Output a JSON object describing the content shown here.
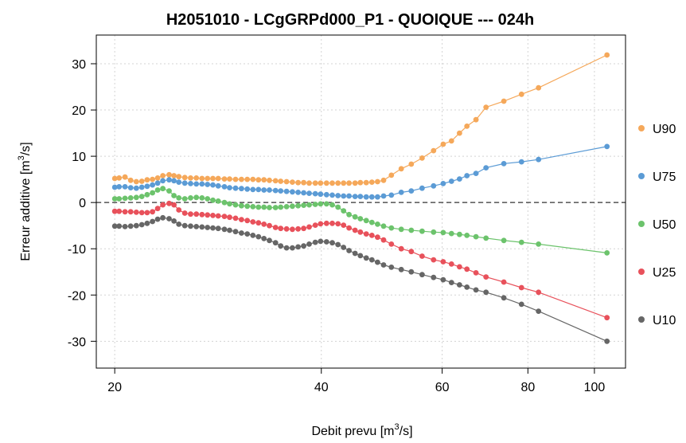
{
  "chart_data": {
    "type": "line",
    "title": "H2051010 - LCgGRPd000_P1 - QUOIQUE --- 024h",
    "xlabel": "Debit prevu [m",
    "xlabel_sup": "3",
    "xlabel_tail": "/s]",
    "ylabel": "Erreur additive [m",
    "ylabel_sup": "3",
    "ylabel_tail": "/s]",
    "x_scale": "log",
    "xlim": [
      18.8,
      111
    ],
    "ylim": [
      -35.8,
      36.2
    ],
    "x_ticks": [
      20,
      40,
      60,
      80,
      100
    ],
    "x_tick_labels": [
      "20",
      "40",
      "60",
      "80",
      "100"
    ],
    "y_ticks": [
      -30,
      -20,
      -10,
      0,
      10,
      20,
      30
    ],
    "y_tick_labels": [
      "-30",
      "-20",
      "-10",
      "0",
      "10",
      "20",
      "30"
    ],
    "grid": true,
    "reference_line": 0,
    "legend_position": "right",
    "series": [
      {
        "name": "U90",
        "color": "#F5A85A",
        "x": [
          20.0,
          20.3,
          20.7,
          21.1,
          21.5,
          21.9,
          22.3,
          22.7,
          23.1,
          23.5,
          24.0,
          24.4,
          24.8,
          25.3,
          25.8,
          26.3,
          26.8,
          27.3,
          27.8,
          28.3,
          28.9,
          29.4,
          30.0,
          30.6,
          31.2,
          31.8,
          32.4,
          33.0,
          33.6,
          34.3,
          34.9,
          35.6,
          36.3,
          37.0,
          37.7,
          38.4,
          39.2,
          39.9,
          40.7,
          41.5,
          42.3,
          43.1,
          43.9,
          44.8,
          45.6,
          46.5,
          47.4,
          48.3,
          49.3,
          50.6,
          52.3,
          54.1,
          56.1,
          58.3,
          60.2,
          61.9,
          63.6,
          65.2,
          67.2,
          69.5,
          73.8,
          78.3,
          82.9,
          104.3
        ],
        "y": [
          5.2,
          5.3,
          5.5,
          4.8,
          4.5,
          4.6,
          4.9,
          5.0,
          5.3,
          5.8,
          6.0,
          5.8,
          5.6,
          5.4,
          5.3,
          5.3,
          5.2,
          5.2,
          5.2,
          5.2,
          5.1,
          5.1,
          5.0,
          5.0,
          5.0,
          5.0,
          4.9,
          4.9,
          4.8,
          4.7,
          4.6,
          4.5,
          4.4,
          4.3,
          4.3,
          4.2,
          4.2,
          4.2,
          4.2,
          4.2,
          4.2,
          4.2,
          4.2,
          4.2,
          4.3,
          4.3,
          4.4,
          4.5,
          4.8,
          5.9,
          7.3,
          8.3,
          9.6,
          11.2,
          12.6,
          13.3,
          15.0,
          16.5,
          17.9,
          20.6,
          21.9,
          23.4,
          24.8,
          31.9
        ]
      },
      {
        "name": "U75",
        "color": "#5B9BD5",
        "x": [
          20.0,
          20.3,
          20.7,
          21.1,
          21.5,
          21.9,
          22.3,
          22.7,
          23.1,
          23.5,
          24.0,
          24.4,
          24.8,
          25.3,
          25.8,
          26.3,
          26.8,
          27.3,
          27.8,
          28.3,
          28.9,
          29.4,
          30.0,
          30.6,
          31.2,
          31.8,
          32.4,
          33.0,
          33.6,
          34.3,
          34.9,
          35.6,
          36.3,
          37.0,
          37.7,
          38.4,
          39.2,
          39.9,
          40.7,
          41.5,
          42.3,
          43.1,
          43.9,
          44.8,
          45.6,
          46.5,
          47.4,
          48.3,
          49.3,
          50.6,
          52.3,
          54.1,
          56.1,
          58.3,
          60.2,
          61.9,
          63.6,
          65.2,
          67.2,
          69.5,
          73.8,
          78.3,
          82.9,
          104.3
        ],
        "y": [
          3.3,
          3.4,
          3.4,
          3.2,
          3.1,
          3.3,
          3.5,
          3.8,
          4.2,
          4.7,
          4.9,
          4.7,
          4.4,
          4.2,
          4.1,
          4.0,
          4.0,
          3.9,
          3.8,
          3.6,
          3.4,
          3.2,
          3.1,
          3.0,
          2.9,
          2.8,
          2.8,
          2.7,
          2.7,
          2.6,
          2.5,
          2.4,
          2.3,
          2.2,
          2.1,
          2.0,
          1.9,
          1.8,
          1.7,
          1.6,
          1.5,
          1.4,
          1.4,
          1.3,
          1.3,
          1.2,
          1.2,
          1.2,
          1.4,
          1.6,
          2.2,
          2.5,
          3.1,
          3.6,
          4.1,
          4.6,
          5.1,
          5.8,
          6.3,
          7.5,
          8.4,
          8.8,
          9.3,
          12.1
        ]
      },
      {
        "name": "U50",
        "color": "#6CC36C",
        "x": [
          20.0,
          20.3,
          20.7,
          21.1,
          21.5,
          21.9,
          22.3,
          22.7,
          23.1,
          23.5,
          24.0,
          24.4,
          24.8,
          25.3,
          25.8,
          26.3,
          26.8,
          27.3,
          27.8,
          28.3,
          28.9,
          29.4,
          30.0,
          30.6,
          31.2,
          31.8,
          32.4,
          33.0,
          33.6,
          34.3,
          34.9,
          35.6,
          36.3,
          37.0,
          37.7,
          38.4,
          39.2,
          39.9,
          40.7,
          41.5,
          42.3,
          43.1,
          43.9,
          44.8,
          45.6,
          46.5,
          47.4,
          48.3,
          49.3,
          50.6,
          52.3,
          54.1,
          56.1,
          58.3,
          60.2,
          61.9,
          63.6,
          65.2,
          67.2,
          69.5,
          73.8,
          78.3,
          82.9,
          104.3
        ],
        "y": [
          0.8,
          0.8,
          0.9,
          1.0,
          1.1,
          1.3,
          1.7,
          2.1,
          2.7,
          3.0,
          2.5,
          1.5,
          1.0,
          0.8,
          1.0,
          1.1,
          1.0,
          0.8,
          0.5,
          0.3,
          0.0,
          -0.3,
          -0.5,
          -0.7,
          -0.8,
          -0.9,
          -1.0,
          -1.0,
          -1.1,
          -1.1,
          -1.0,
          -0.9,
          -0.8,
          -0.7,
          -0.6,
          -0.5,
          -0.4,
          -0.3,
          -0.3,
          -0.5,
          -1.0,
          -1.8,
          -2.6,
          -3.1,
          -3.5,
          -3.9,
          -4.3,
          -4.7,
          -5.1,
          -5.5,
          -5.8,
          -6.0,
          -6.2,
          -6.4,
          -6.5,
          -6.7,
          -6.9,
          -7.1,
          -7.4,
          -7.7,
          -8.2,
          -8.6,
          -9.0,
          -10.9
        ]
      },
      {
        "name": "U25",
        "color": "#E8515B",
        "x": [
          20.0,
          20.3,
          20.7,
          21.1,
          21.5,
          21.9,
          22.3,
          22.7,
          23.1,
          23.5,
          24.0,
          24.4,
          24.8,
          25.3,
          25.8,
          26.3,
          26.8,
          27.3,
          27.8,
          28.3,
          28.9,
          29.4,
          30.0,
          30.6,
          31.2,
          31.8,
          32.4,
          33.0,
          33.6,
          34.3,
          34.9,
          35.6,
          36.3,
          37.0,
          37.7,
          38.4,
          39.2,
          39.9,
          40.7,
          41.5,
          42.3,
          43.1,
          43.9,
          44.8,
          45.6,
          46.5,
          47.4,
          48.3,
          49.3,
          50.6,
          52.3,
          54.1,
          56.1,
          58.3,
          60.2,
          61.9,
          63.6,
          65.2,
          67.2,
          69.5,
          73.8,
          78.3,
          82.9,
          104.3
        ],
        "y": [
          -1.9,
          -1.9,
          -2.0,
          -2.0,
          -2.1,
          -2.2,
          -2.2,
          -2.0,
          -1.3,
          -0.5,
          -0.2,
          -0.5,
          -1.6,
          -2.3,
          -2.5,
          -2.5,
          -2.6,
          -2.7,
          -2.8,
          -2.9,
          -3.0,
          -3.2,
          -3.4,
          -3.7,
          -3.9,
          -4.2,
          -4.4,
          -4.7,
          -5.0,
          -5.4,
          -5.6,
          -5.7,
          -5.8,
          -5.7,
          -5.6,
          -5.3,
          -4.9,
          -4.6,
          -4.5,
          -4.5,
          -4.6,
          -4.9,
          -5.5,
          -6.0,
          -6.4,
          -6.8,
          -7.1,
          -7.5,
          -8.1,
          -9.0,
          -10.0,
          -10.6,
          -11.6,
          -12.4,
          -12.8,
          -13.3,
          -13.9,
          -14.4,
          -15.2,
          -16.1,
          -17.2,
          -18.4,
          -19.4,
          -24.9
        ]
      },
      {
        "name": "U10",
        "color": "#666666",
        "x": [
          20.0,
          20.3,
          20.7,
          21.1,
          21.5,
          21.9,
          22.3,
          22.7,
          23.1,
          23.5,
          24.0,
          24.4,
          24.8,
          25.3,
          25.8,
          26.3,
          26.8,
          27.3,
          27.8,
          28.3,
          28.9,
          29.4,
          30.0,
          30.6,
          31.2,
          31.8,
          32.4,
          33.0,
          33.6,
          34.3,
          34.9,
          35.6,
          36.3,
          37.0,
          37.7,
          38.4,
          39.2,
          39.9,
          40.7,
          41.5,
          42.3,
          43.1,
          43.9,
          44.8,
          45.6,
          46.5,
          47.4,
          48.3,
          49.3,
          50.6,
          52.3,
          54.1,
          56.1,
          58.3,
          60.2,
          61.9,
          63.6,
          65.2,
          67.2,
          69.5,
          73.8,
          78.3,
          82.9,
          104.3
        ],
        "y": [
          -5.1,
          -5.1,
          -5.2,
          -5.1,
          -5.0,
          -4.8,
          -4.5,
          -4.1,
          -3.6,
          -3.3,
          -3.5,
          -4.0,
          -4.7,
          -5.0,
          -5.1,
          -5.2,
          -5.3,
          -5.4,
          -5.5,
          -5.6,
          -5.8,
          -6.0,
          -6.3,
          -6.6,
          -6.8,
          -7.1,
          -7.4,
          -7.8,
          -8.2,
          -8.7,
          -9.4,
          -9.8,
          -9.8,
          -9.6,
          -9.4,
          -9.0,
          -8.6,
          -8.4,
          -8.5,
          -8.7,
          -9.1,
          -9.7,
          -10.4,
          -11.0,
          -11.5,
          -12.0,
          -12.4,
          -12.9,
          -13.5,
          -14.0,
          -14.5,
          -15.0,
          -15.6,
          -16.2,
          -16.7,
          -17.3,
          -17.8,
          -18.3,
          -18.9,
          -19.4,
          -20.6,
          -22.0,
          -23.5,
          -30.0
        ]
      }
    ]
  }
}
